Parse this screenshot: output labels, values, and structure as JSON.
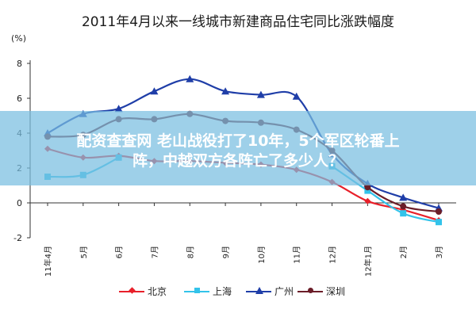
{
  "chart_data": {
    "type": "line",
    "title": "2011年4月以来一线城市新建商品住宅同比涨跌幅度",
    "unit_label": "(%)",
    "categories": [
      "11年4月",
      "5月",
      "6月",
      "7月",
      "8月",
      "9月",
      "10月",
      "11月",
      "12月",
      "12年1月",
      "2月",
      "3月"
    ],
    "ylim": [
      -2,
      8
    ],
    "yticks": [
      -2,
      0,
      2,
      4,
      6,
      8
    ],
    "grid": false,
    "legend_position": "bottom",
    "series": [
      {
        "name": "北京",
        "color": "#e8202a",
        "marker": "diamond",
        "values": [
          3.1,
          2.6,
          2.7,
          2.4,
          2.4,
          2.3,
          2.2,
          1.9,
          1.2,
          0.1,
          -0.4,
          -1.0
        ]
      },
      {
        "name": "上海",
        "color": "#33c3ea",
        "marker": "square",
        "values": [
          1.5,
          1.6,
          2.6,
          null,
          null,
          null,
          null,
          null,
          2.1,
          0.7,
          -0.6,
          -1.1
        ]
      },
      {
        "name": "广州",
        "color": "#1f3ea8",
        "marker": "triangle",
        "values": [
          4.0,
          5.1,
          5.4,
          6.4,
          7.1,
          6.4,
          6.2,
          6.1,
          2.8,
          1.1,
          0.3,
          -0.3
        ]
      },
      {
        "name": "深圳",
        "color": "#6b1d28",
        "marker": "circle",
        "values": [
          3.8,
          3.9,
          4.8,
          4.8,
          5.1,
          4.7,
          4.6,
          4.2,
          3.0,
          0.9,
          -0.2,
          -0.5
        ]
      }
    ]
  },
  "banner": {
    "line1": "配资查查网 老山战役打了10年，5个军区轮番上",
    "line2": "阵，中越双方各阵亡了多少人？"
  }
}
